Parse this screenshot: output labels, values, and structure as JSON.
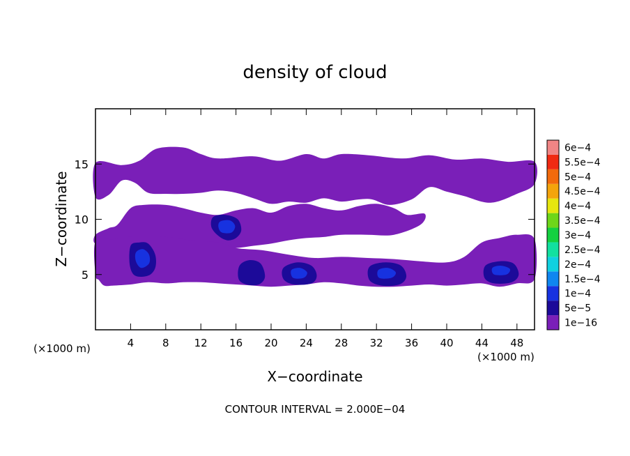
{
  "chart_data": {
    "type": "heatmap",
    "title": "density of cloud",
    "xlabel": "X−coordinate",
    "ylabel": "Z−coordinate",
    "x_unit_label": "(×1000 m)",
    "y_unit_label": "(×1000 m)",
    "xlim": [
      0,
      50
    ],
    "ylim": [
      0,
      20
    ],
    "x_ticks": [
      4,
      8,
      12,
      16,
      20,
      24,
      28,
      32,
      36,
      40,
      44,
      48
    ],
    "y_ticks": [
      5,
      10,
      15
    ],
    "footer": "CONTOUR INTERVAL = 2.000E−04",
    "colorbar": {
      "levels": [
        {
          "label": "1e−16",
          "color": "#7a1fb8"
        },
        {
          "label": "5e−5",
          "color": "#1c0a99"
        },
        {
          "label": "1e−4",
          "color": "#1732e0"
        },
        {
          "label": "1.5e−4",
          "color": "#0f86f0"
        },
        {
          "label": "2e−4",
          "color": "#10d0e0"
        },
        {
          "label": "2.5e−4",
          "color": "#12e0a0"
        },
        {
          "label": "3e−4",
          "color": "#14d040"
        },
        {
          "label": "3.5e−4",
          "color": "#6ed61a"
        },
        {
          "label": "4e−4",
          "color": "#e6e60f"
        },
        {
          "label": "4.5e−4",
          "color": "#f4a40c"
        },
        {
          "label": "5e−4",
          "color": "#f26a0c"
        },
        {
          "label": "5.5e−4",
          "color": "#f02a12"
        },
        {
          "label": "6e−4",
          "color": "#f08585"
        }
      ]
    },
    "regions": [
      {
        "name": "upper cloud layer",
        "level": 0,
        "outline": [
          [
            0,
            15.1
          ],
          [
            3,
            14.9
          ],
          [
            5,
            15.3
          ],
          [
            7,
            16.4
          ],
          [
            10,
            16.5
          ],
          [
            12,
            15.9
          ],
          [
            14,
            15.5
          ],
          [
            18,
            15.7
          ],
          [
            21,
            15.3
          ],
          [
            24,
            15.9
          ],
          [
            26,
            15.5
          ],
          [
            28,
            15.9
          ],
          [
            31,
            15.8
          ],
          [
            35,
            15.5
          ],
          [
            38,
            15.8
          ],
          [
            41,
            15.4
          ],
          [
            44,
            15.5
          ],
          [
            47,
            15.2
          ],
          [
            50,
            15.2
          ],
          [
            50,
            13.2
          ],
          [
            48,
            12.3
          ],
          [
            45,
            11.5
          ],
          [
            42,
            12.1
          ],
          [
            40,
            12.5
          ],
          [
            38,
            12.9
          ],
          [
            36,
            11.8
          ],
          [
            33.5,
            11.3
          ],
          [
            31.5,
            11.8
          ],
          [
            30,
            11.8
          ],
          [
            28,
            11.6
          ],
          [
            26,
            11.9
          ],
          [
            24,
            11.5
          ],
          [
            22,
            11.6
          ],
          [
            20,
            11.4
          ],
          [
            18,
            11.9
          ],
          [
            16,
            12.4
          ],
          [
            14,
            12.6
          ],
          [
            12,
            12.4
          ],
          [
            10,
            12.3
          ],
          [
            8,
            12.3
          ],
          [
            6,
            12.4
          ],
          [
            4.5,
            13.3
          ],
          [
            3,
            13.5
          ],
          [
            1.5,
            12.2
          ],
          [
            0,
            12.0
          ]
        ]
      },
      {
        "name": "middle cloud layer",
        "level": 0,
        "outline": [
          [
            0,
            8.6
          ],
          [
            1.5,
            9.2
          ],
          [
            2.5,
            9.5
          ],
          [
            4,
            11.0
          ],
          [
            5.5,
            11.3
          ],
          [
            8,
            11.3
          ],
          [
            10,
            11.0
          ],
          [
            12,
            10.6
          ],
          [
            14,
            10.4
          ],
          [
            16,
            10.8
          ],
          [
            18,
            11.0
          ],
          [
            20,
            10.6
          ],
          [
            22,
            11.2
          ],
          [
            24,
            11.4
          ],
          [
            26,
            11.0
          ],
          [
            28,
            10.8
          ],
          [
            30,
            11.2
          ],
          [
            32,
            11.4
          ],
          [
            34,
            11.0
          ],
          [
            35.5,
            10.4
          ],
          [
            37.5,
            10.5
          ],
          [
            37,
            9.5
          ],
          [
            34,
            8.6
          ],
          [
            31,
            8.6
          ],
          [
            28,
            8.6
          ],
          [
            26,
            8.4
          ],
          [
            24,
            8.3
          ],
          [
            22,
            8.1
          ],
          [
            20,
            7.8
          ],
          [
            18,
            7.6
          ],
          [
            16,
            7.4
          ],
          [
            14,
            7.4
          ],
          [
            12,
            7.6
          ],
          [
            10,
            7.8
          ],
          [
            8,
            8.0
          ],
          [
            6,
            8.0
          ],
          [
            4,
            7.8
          ],
          [
            2,
            8.0
          ],
          [
            0,
            7.8
          ]
        ]
      },
      {
        "name": "lower cloud layer",
        "level": 0,
        "outline": [
          [
            0,
            8.0
          ],
          [
            2,
            8.2
          ],
          [
            5,
            8.5
          ],
          [
            8,
            8.4
          ],
          [
            11,
            8.1
          ],
          [
            14,
            7.9
          ],
          [
            16,
            7.4
          ],
          [
            19,
            7.2
          ],
          [
            22,
            6.8
          ],
          [
            25,
            6.5
          ],
          [
            28,
            6.6
          ],
          [
            31,
            6.5
          ],
          [
            34,
            6.4
          ],
          [
            37,
            6.2
          ],
          [
            40,
            6.1
          ],
          [
            42,
            6.6
          ],
          [
            44,
            7.9
          ],
          [
            46,
            8.3
          ],
          [
            48,
            8.6
          ],
          [
            50,
            8.2
          ],
          [
            50,
            4.6
          ],
          [
            48,
            4.2
          ],
          [
            46,
            3.9
          ],
          [
            44,
            4.2
          ],
          [
            42,
            4.1
          ],
          [
            40,
            4.0
          ],
          [
            38,
            4.1
          ],
          [
            36,
            4.0
          ],
          [
            34,
            3.9
          ],
          [
            32,
            3.9
          ],
          [
            30,
            4.0
          ],
          [
            28,
            4.2
          ],
          [
            26,
            4.3
          ],
          [
            24,
            4.1
          ],
          [
            22,
            4.0
          ],
          [
            20,
            3.9
          ],
          [
            18,
            4.0
          ],
          [
            16,
            4.1
          ],
          [
            14,
            4.2
          ],
          [
            12,
            4.3
          ],
          [
            10,
            4.3
          ],
          [
            8,
            4.2
          ],
          [
            6,
            4.3
          ],
          [
            4,
            4.1
          ],
          [
            2,
            4.0
          ],
          [
            1,
            4.0
          ],
          [
            0.4,
            4.5
          ],
          [
            0,
            5.0
          ]
        ]
      },
      {
        "name": "core near x=5",
        "level": 1,
        "outline": [
          [
            4,
            7.6
          ],
          [
            5,
            7.9
          ],
          [
            6,
            7.8
          ],
          [
            6.8,
            6.8
          ],
          [
            6.8,
            5.6
          ],
          [
            6,
            4.9
          ],
          [
            4.5,
            4.9
          ],
          [
            3.9,
            5.9
          ]
        ]
      },
      {
        "name": "core near x=15",
        "level": 1,
        "outline": [
          [
            13.4,
            10.2
          ],
          [
            14.8,
            10.4
          ],
          [
            16.2,
            10.0
          ],
          [
            16.6,
            9.0
          ],
          [
            16,
            8.3
          ],
          [
            15,
            8.1
          ],
          [
            14,
            8.5
          ],
          [
            13.2,
            9.3
          ]
        ]
      },
      {
        "name": "core near x=17.5",
        "level": 1,
        "outline": [
          [
            16.4,
            5.8
          ],
          [
            17.5,
            6.3
          ],
          [
            18.8,
            6.0
          ],
          [
            19.3,
            4.8
          ],
          [
            18.6,
            4.1
          ],
          [
            17.2,
            4.1
          ],
          [
            16.3,
            4.6
          ]
        ]
      },
      {
        "name": "core near x=23",
        "level": 1,
        "outline": [
          [
            21.4,
            5.6
          ],
          [
            23,
            6.1
          ],
          [
            24.6,
            5.8
          ],
          [
            25.2,
            4.9
          ],
          [
            24.6,
            4.2
          ],
          [
            22.6,
            4.1
          ],
          [
            21.4,
            4.6
          ]
        ]
      },
      {
        "name": "core near x=33",
        "level": 1,
        "outline": [
          [
            31.2,
            5.7
          ],
          [
            33,
            6.1
          ],
          [
            34.8,
            5.8
          ],
          [
            35.4,
            4.8
          ],
          [
            34.6,
            4.1
          ],
          [
            32.6,
            4.0
          ],
          [
            31.2,
            4.5
          ]
        ]
      },
      {
        "name": "core near x=46",
        "level": 1,
        "outline": [
          [
            44.4,
            5.8
          ],
          [
            46,
            6.2
          ],
          [
            47.6,
            6.0
          ],
          [
            48.2,
            5.0
          ],
          [
            47.4,
            4.3
          ],
          [
            45.4,
            4.2
          ],
          [
            44.3,
            4.7
          ]
        ]
      },
      {
        "name": "inner core near x=5",
        "level": 2,
        "outline": [
          [
            4.6,
            7.0
          ],
          [
            5.4,
            7.3
          ],
          [
            6.1,
            6.8
          ],
          [
            6.1,
            6.0
          ],
          [
            5.2,
            5.6
          ],
          [
            4.6,
            6.2
          ]
        ]
      },
      {
        "name": "inner core near x=15",
        "level": 2,
        "outline": [
          [
            14.2,
            9.8
          ],
          [
            15.3,
            9.9
          ],
          [
            15.9,
            9.4
          ],
          [
            15.5,
            8.8
          ],
          [
            14.4,
            8.8
          ],
          [
            14.0,
            9.3
          ]
        ]
      },
      {
        "name": "inner core near x=23",
        "level": 2,
        "outline": [
          [
            22.3,
            5.4
          ],
          [
            23.3,
            5.6
          ],
          [
            24.1,
            5.2
          ],
          [
            23.7,
            4.7
          ],
          [
            22.5,
            4.7
          ]
        ]
      },
      {
        "name": "inner core near x=33",
        "level": 2,
        "outline": [
          [
            32.2,
            5.4
          ],
          [
            33.3,
            5.6
          ],
          [
            34.2,
            5.2
          ],
          [
            33.7,
            4.7
          ],
          [
            32.3,
            4.7
          ]
        ]
      },
      {
        "name": "inner core near x=46",
        "level": 2,
        "outline": [
          [
            45.2,
            5.6
          ],
          [
            46.2,
            5.8
          ],
          [
            47.2,
            5.5
          ],
          [
            46.8,
            5.0
          ],
          [
            45.4,
            5.0
          ]
        ]
      }
    ]
  }
}
